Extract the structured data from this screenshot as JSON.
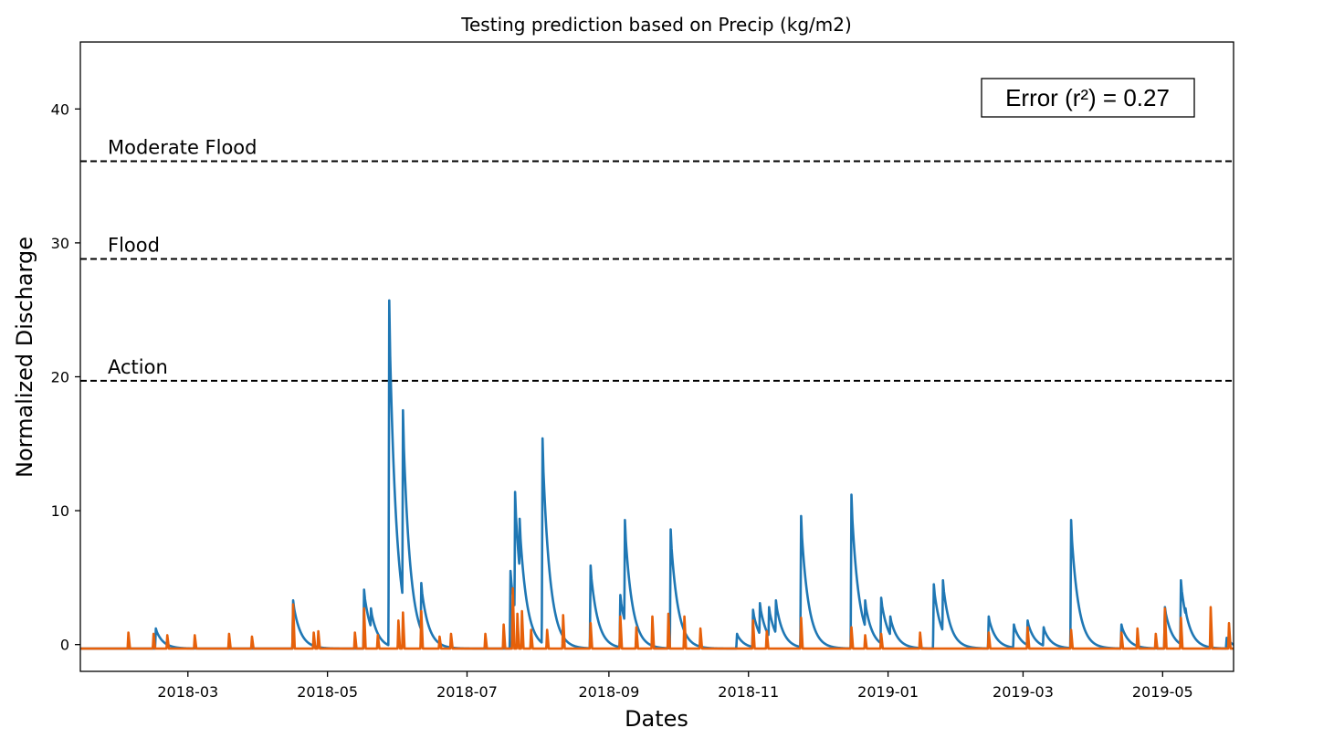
{
  "chart_data": {
    "type": "line",
    "title": "Testing prediction based on Precip (kg/m2)",
    "xlabel": "Dates",
    "ylabel": "Normalized Discharge",
    "xlim": [
      "2018-01-13",
      "2019-06-01"
    ],
    "ylim": [
      -2,
      45
    ],
    "x_ticks": [
      "2018-03",
      "2018-05",
      "2018-07",
      "2018-09",
      "2018-11",
      "2019-01",
      "2019-03",
      "2019-05"
    ],
    "y_ticks": [
      0,
      10,
      20,
      30,
      40
    ],
    "grid": false,
    "legend": "none",
    "error_box": {
      "text": "Error (r²) = 0.27",
      "placement": "top-right"
    },
    "thresholds": [
      {
        "label": "Moderate Flood",
        "value": 36.1
      },
      {
        "label": "Flood",
        "value": 28.8
      },
      {
        "label": "Action",
        "value": 19.7
      }
    ],
    "colors": {
      "observed": "#1f77b4",
      "predicted": "#e6600a",
      "threshold": "#000000"
    },
    "series": [
      {
        "color": "#1f77b4",
        "baseline": -0.3,
        "peaks": [
          [
            "2018-02-15",
            1.2
          ],
          [
            "2018-04-16",
            3.3
          ],
          [
            "2018-05-17",
            4.1
          ],
          [
            "2018-05-20",
            2.7
          ],
          [
            "2018-05-28",
            25.7
          ],
          [
            "2018-06-03",
            17.5
          ],
          [
            "2018-06-11",
            4.6
          ],
          [
            "2018-07-20",
            5.5
          ],
          [
            "2018-07-22",
            11.4
          ],
          [
            "2018-07-24",
            9.4
          ],
          [
            "2018-07-25",
            6.1
          ],
          [
            "2018-08-03",
            15.4
          ],
          [
            "2018-08-24",
            5.9
          ],
          [
            "2018-09-06",
            3.7
          ],
          [
            "2018-09-08",
            9.3
          ],
          [
            "2018-09-28",
            8.6
          ],
          [
            "2018-10-27",
            0.8
          ],
          [
            "2018-11-03",
            2.6
          ],
          [
            "2018-11-06",
            3.1
          ],
          [
            "2018-11-10",
            2.8
          ],
          [
            "2018-11-13",
            3.3
          ],
          [
            "2018-11-24",
            9.6
          ],
          [
            "2018-12-16",
            11.2
          ],
          [
            "2018-12-22",
            3.3
          ],
          [
            "2018-12-29",
            3.5
          ],
          [
            "2019-01-02",
            2.1
          ],
          [
            "2019-01-21",
            4.5
          ],
          [
            "2019-01-25",
            4.8
          ],
          [
            "2019-02-14",
            2.1
          ],
          [
            "2019-02-25",
            1.5
          ],
          [
            "2019-03-03",
            1.8
          ],
          [
            "2019-03-10",
            1.3
          ],
          [
            "2019-03-22",
            9.3
          ],
          [
            "2019-04-13",
            1.5
          ],
          [
            "2019-05-02",
            2.8
          ],
          [
            "2019-05-09",
            4.8
          ],
          [
            "2019-05-11",
            2.7
          ],
          [
            "2019-05-29",
            0.5
          ]
        ]
      },
      {
        "color": "#e6600a",
        "baseline": -0.3,
        "peaks": [
          [
            "2018-02-03",
            0.9
          ],
          [
            "2018-02-14",
            0.8
          ],
          [
            "2018-02-20",
            0.7
          ],
          [
            "2018-03-04",
            0.7
          ],
          [
            "2018-03-19",
            0.8
          ],
          [
            "2018-03-29",
            0.6
          ],
          [
            "2018-04-16",
            3.0
          ],
          [
            "2018-04-25",
            0.9
          ],
          [
            "2018-04-27",
            1.0
          ],
          [
            "2018-05-13",
            0.9
          ],
          [
            "2018-05-17",
            2.7
          ],
          [
            "2018-05-23",
            0.7
          ],
          [
            "2018-06-01",
            1.8
          ],
          [
            "2018-06-03",
            2.4
          ],
          [
            "2018-06-11",
            2.5
          ],
          [
            "2018-06-19",
            0.6
          ],
          [
            "2018-06-24",
            0.8
          ],
          [
            "2018-07-09",
            0.8
          ],
          [
            "2018-07-17",
            1.5
          ],
          [
            "2018-07-21",
            4.2
          ],
          [
            "2018-07-23",
            2.3
          ],
          [
            "2018-07-25",
            2.5
          ],
          [
            "2018-07-29",
            1.1
          ],
          [
            "2018-08-05",
            1.1
          ],
          [
            "2018-08-12",
            2.2
          ],
          [
            "2018-08-24",
            1.6
          ],
          [
            "2018-09-06",
            2.1
          ],
          [
            "2018-09-13",
            1.3
          ],
          [
            "2018-09-20",
            2.1
          ],
          [
            "2018-09-27",
            2.3
          ],
          [
            "2018-10-04",
            2.1
          ],
          [
            "2018-10-11",
            1.2
          ],
          [
            "2018-11-03",
            1.8
          ],
          [
            "2018-11-09",
            1.0
          ],
          [
            "2018-11-24",
            2.0
          ],
          [
            "2018-12-16",
            1.3
          ],
          [
            "2018-12-22",
            0.7
          ],
          [
            "2018-12-29",
            0.8
          ],
          [
            "2019-01-15",
            0.9
          ],
          [
            "2019-02-14",
            0.9
          ],
          [
            "2019-03-03",
            1.3
          ],
          [
            "2019-03-22",
            1.1
          ],
          [
            "2019-04-13",
            0.9
          ],
          [
            "2019-04-20",
            1.2
          ],
          [
            "2019-04-28",
            0.8
          ],
          [
            "2019-05-02",
            2.7
          ],
          [
            "2019-05-09",
            2.0
          ],
          [
            "2019-05-22",
            2.8
          ],
          [
            "2019-05-30",
            1.6
          ]
        ]
      }
    ]
  }
}
